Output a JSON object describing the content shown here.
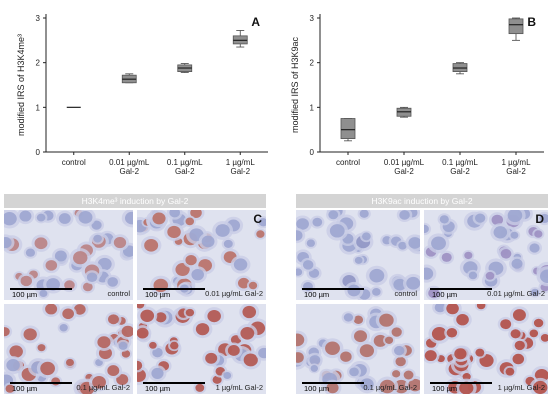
{
  "chart_data": [
    {
      "type": "box",
      "panel_label": "A",
      "ylabel": "modified IRS of H3K4me³",
      "ylim": [
        0,
        3
      ],
      "yticks": [
        0,
        1,
        2,
        3
      ],
      "categories": [
        "control",
        "0.01 µg/mL Gal-2",
        "0.1 µg/mL Gal-2",
        "1 µg/mL Gal-2"
      ],
      "category_lines": [
        [
          "control"
        ],
        [
          "0.01 µg/mL",
          "Gal-2"
        ],
        [
          "0.1 µg/mL",
          "Gal-2"
        ],
        [
          "1 µg/mL",
          "Gal-2"
        ]
      ],
      "boxes": [
        {
          "min": 1.0,
          "q1": 1.0,
          "median": 1.0,
          "q3": 1.0,
          "max": 1.0
        },
        {
          "min": 1.55,
          "q1": 1.55,
          "median": 1.63,
          "q3": 1.72,
          "max": 1.75
        },
        {
          "min": 1.78,
          "q1": 1.8,
          "median": 1.88,
          "q3": 1.95,
          "max": 1.98
        },
        {
          "min": 2.35,
          "q1": 2.42,
          "median": 2.5,
          "q3": 2.6,
          "max": 2.72
        }
      ]
    },
    {
      "type": "box",
      "panel_label": "B",
      "ylabel": "modified IRS of H3K9ac",
      "ylim": [
        0,
        3
      ],
      "yticks": [
        0,
        1,
        2,
        3
      ],
      "categories": [
        "control",
        "0.01 µg/mL Gal-2",
        "0.1 µg/mL Gal-2",
        "1 µg/mL Gal-2"
      ],
      "category_lines": [
        [
          "control"
        ],
        [
          "0.01 µg/mL",
          "Gal-2"
        ],
        [
          "0.1 µg/mL",
          "Gal-2"
        ],
        [
          "1 µg/mL",
          "Gal-2"
        ]
      ],
      "boxes": [
        {
          "min": 0.25,
          "q1": 0.3,
          "median": 0.5,
          "q3": 0.75,
          "max": 0.75
        },
        {
          "min": 0.78,
          "q1": 0.8,
          "median": 0.9,
          "q3": 0.98,
          "max": 1.0
        },
        {
          "min": 1.75,
          "q1": 1.8,
          "median": 1.88,
          "q3": 1.98,
          "max": 2.0
        },
        {
          "min": 2.5,
          "q1": 2.65,
          "median": 2.85,
          "q3": 2.98,
          "max": 3.0
        }
      ]
    }
  ],
  "micro": {
    "left": {
      "banner": "H3K4me³ induction by Gal-2",
      "letter": "C",
      "tiles": [
        {
          "scale": "100 µm",
          "condition": "control",
          "stain": "#b97c7c",
          "density": 0.35
        },
        {
          "scale": "100 µm",
          "condition": "0.01 µg/mL Gal-2",
          "stain": "#b86a5e",
          "density": 0.6
        },
        {
          "scale": "100 µm",
          "condition": "0.1 µg/mL Gal-2",
          "stain": "#b35c52",
          "density": 0.7
        },
        {
          "scale": "100 µm",
          "condition": "1 µg/mL Gal-2",
          "stain": "#b04e44",
          "density": 0.9
        }
      ]
    },
    "right": {
      "banner": "H3K9ac induction by Gal-2",
      "letter": "D",
      "tiles": [
        {
          "scale": "100 µm",
          "condition": "control",
          "stain": "#8c92c2",
          "density": 0.1
        },
        {
          "scale": "100 µm",
          "condition": "0.01 µg/mL Gal-2",
          "stain": "#9a8cc0",
          "density": 0.25
        },
        {
          "scale": "100 µm",
          "condition": "0.1 µg/mL Gal-2",
          "stain": "#b06a60",
          "density": 0.65
        },
        {
          "scale": "100 µm",
          "condition": "1 µg/mL Gal-2",
          "stain": "#b0463c",
          "density": 0.95
        }
      ]
    }
  }
}
